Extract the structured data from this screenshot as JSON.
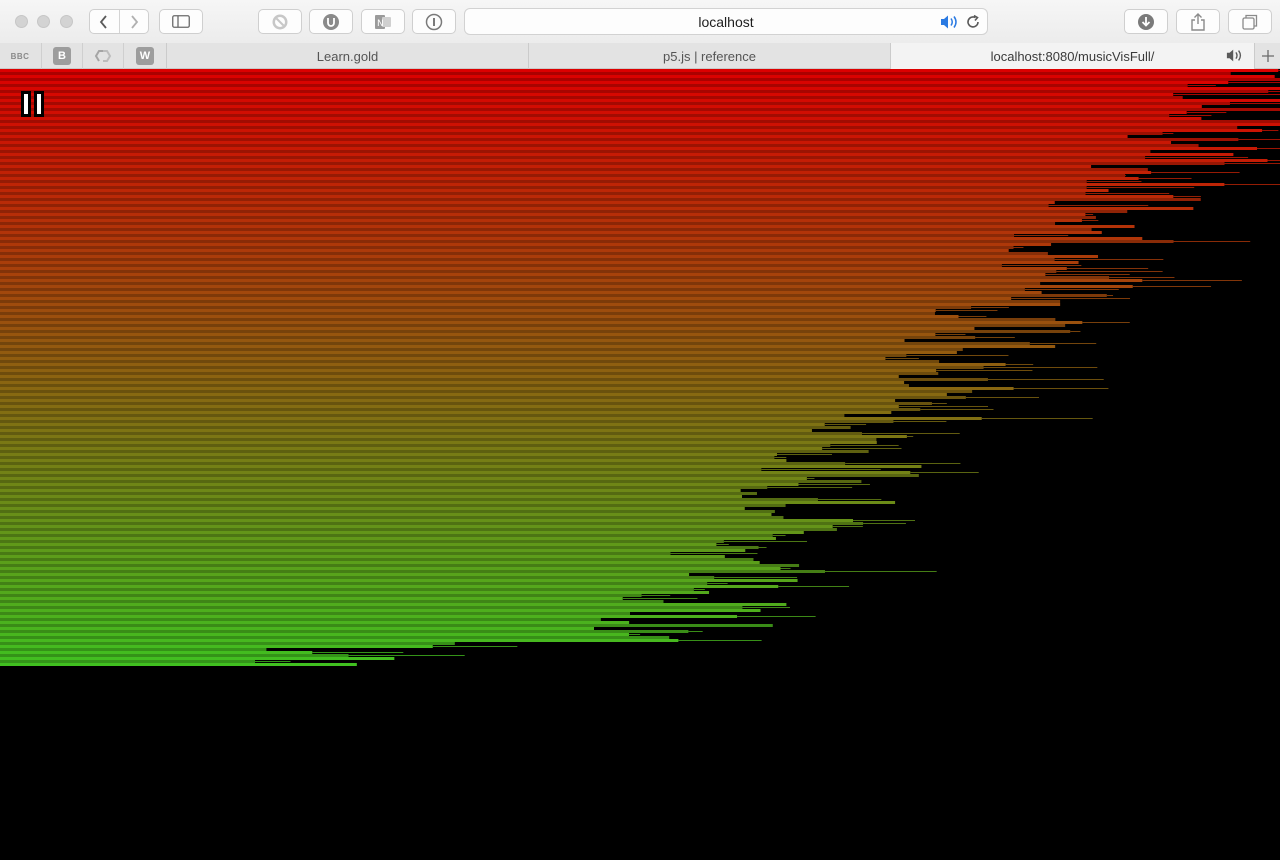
{
  "window": {
    "address_bar": "localhost"
  },
  "bookmarks": [
    "BBC",
    "B",
    "W"
  ],
  "tabs": [
    {
      "label": "Learn.gold"
    },
    {
      "label": "p5.js | reference"
    },
    {
      "label": "localhost:8080/musicVisFull/"
    }
  ],
  "visualizer": {
    "playback_state": "playing",
    "colors": {
      "top": "#dc0000",
      "bottom": "#40c020",
      "background": "#000000"
    }
  }
}
